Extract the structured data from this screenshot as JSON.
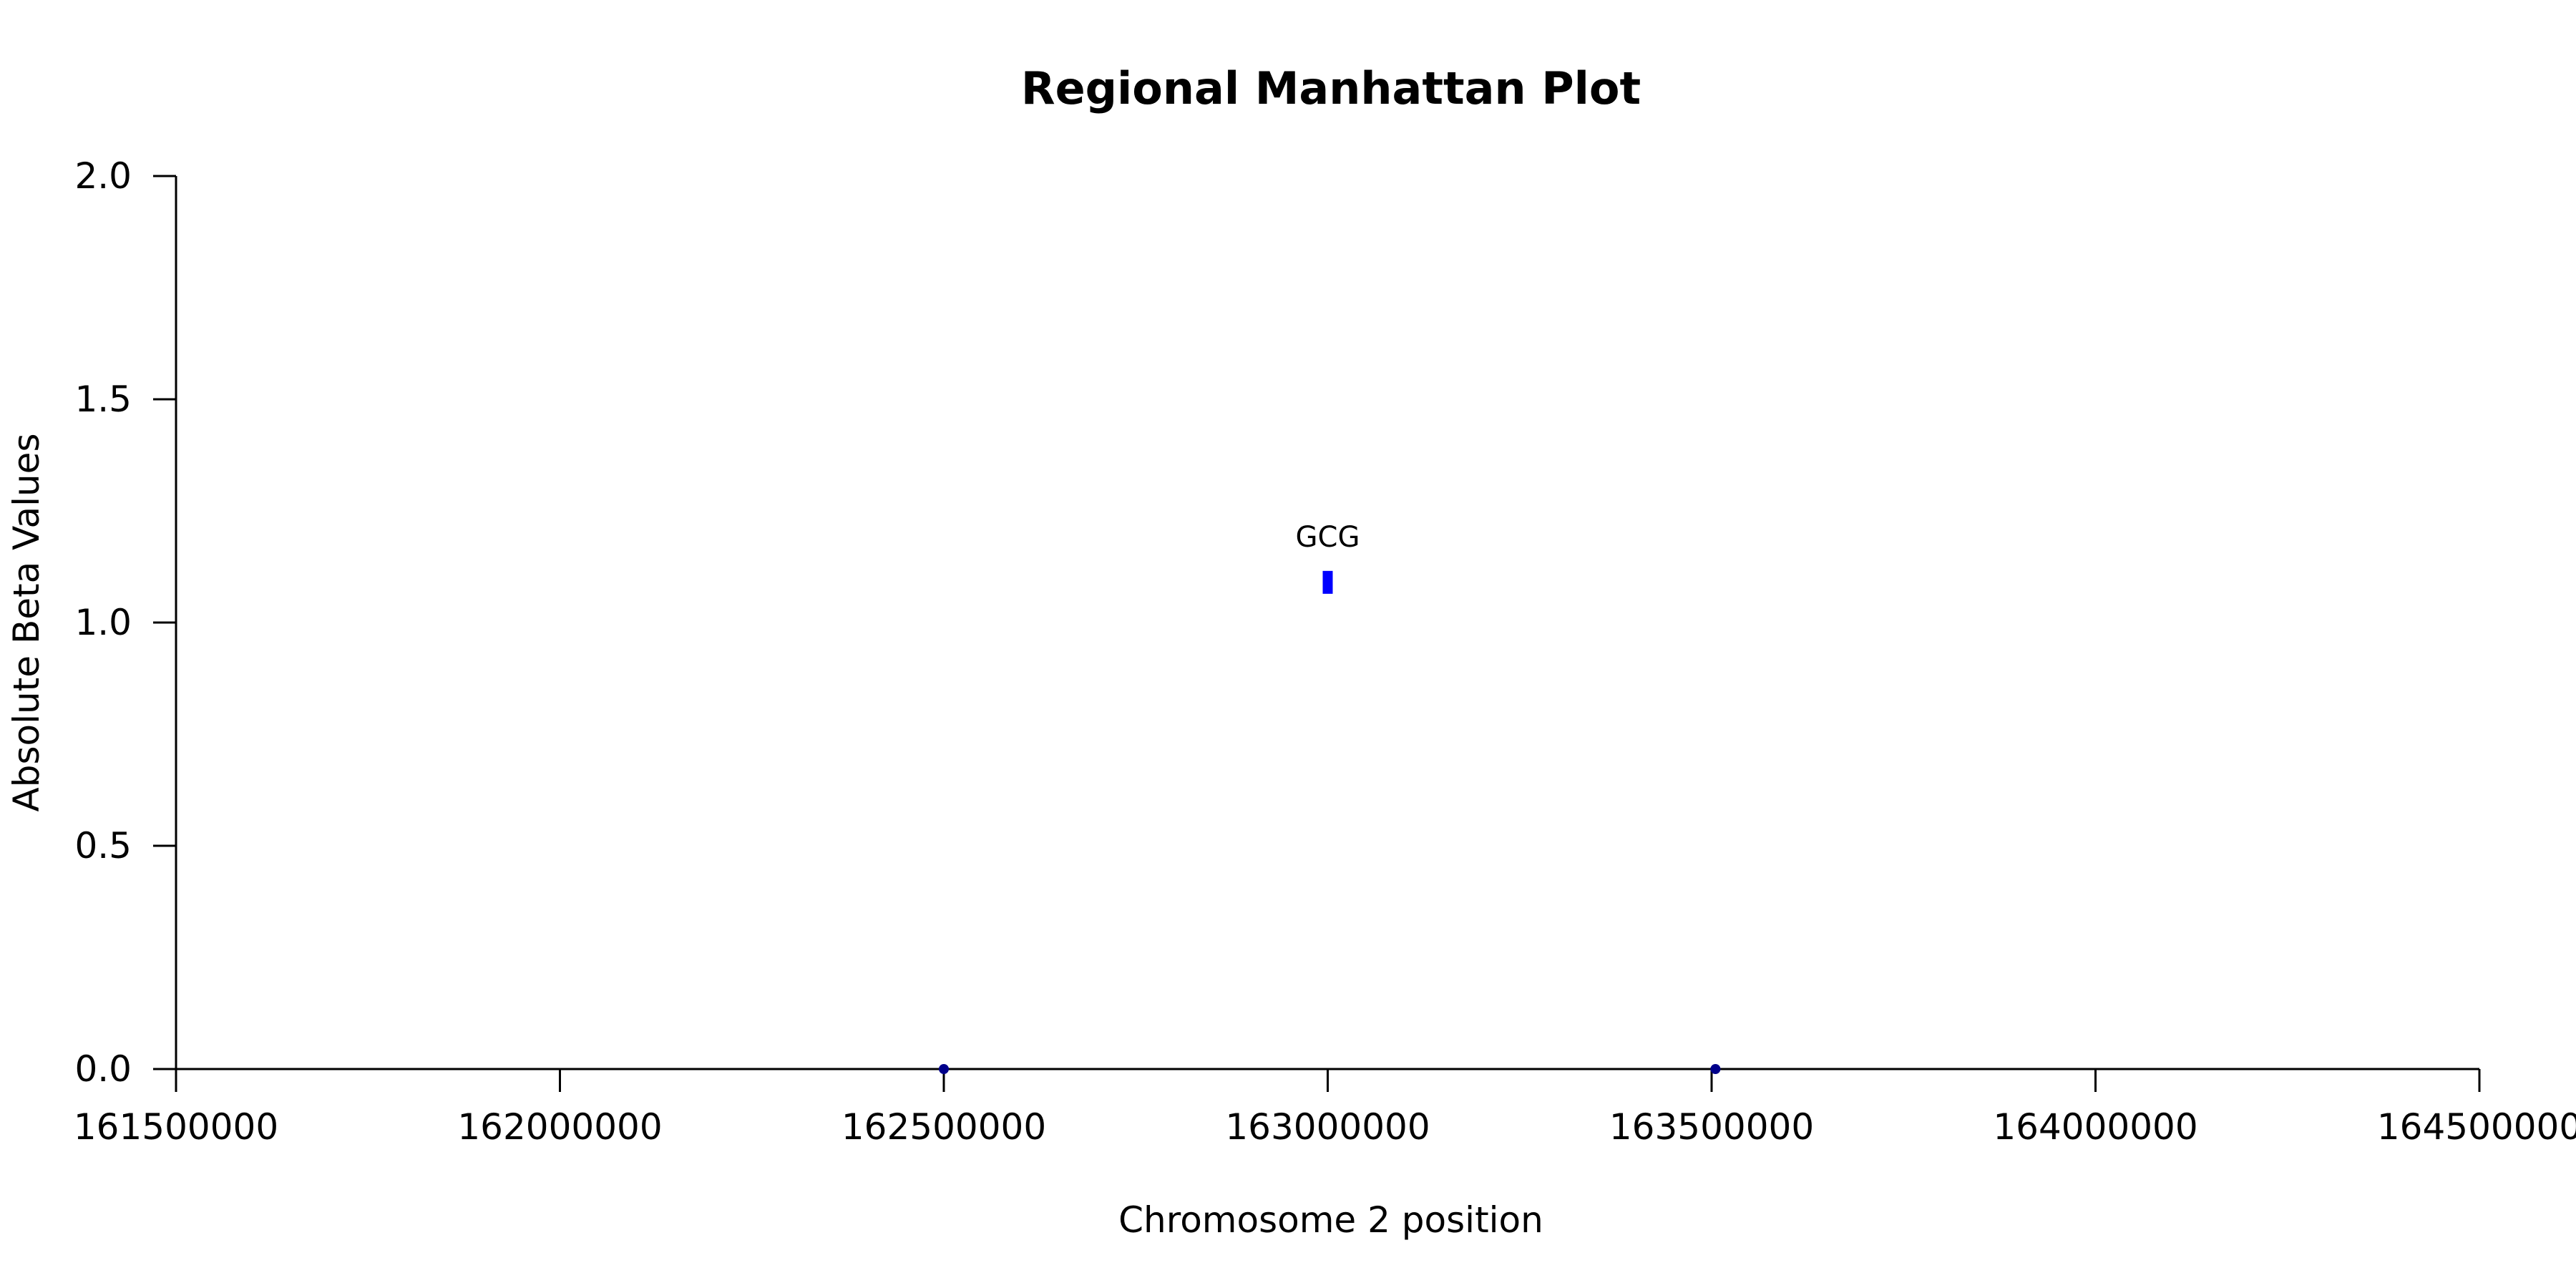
{
  "chart_data": {
    "type": "scatter",
    "title": "Regional Manhattan Plot",
    "xlabel": "Chromosome 2 position",
    "ylabel": "Absolute Beta Values",
    "xlim": [
      161500000,
      164500000
    ],
    "ylim": [
      0,
      2.0
    ],
    "x_ticks": [
      "161500000",
      "162000000",
      "162500000",
      "163000000",
      "163500000",
      "164000000",
      "164500000"
    ],
    "y_ticks": [
      "0.0",
      "0.5",
      "1.0",
      "1.5",
      "2.0"
    ],
    "grid": false,
    "series": [
      {
        "points": [
          {
            "x": 162500000,
            "y": 0.0,
            "label": "",
            "marker": "dot",
            "color": "#00008b"
          },
          {
            "x": 163000000,
            "y": 1.09,
            "label": "GCG",
            "marker": "bar",
            "color": "#0000ff"
          },
          {
            "x": 163505000,
            "y": 0.0,
            "label": "",
            "marker": "dot",
            "color": "#00008b"
          }
        ]
      }
    ]
  }
}
